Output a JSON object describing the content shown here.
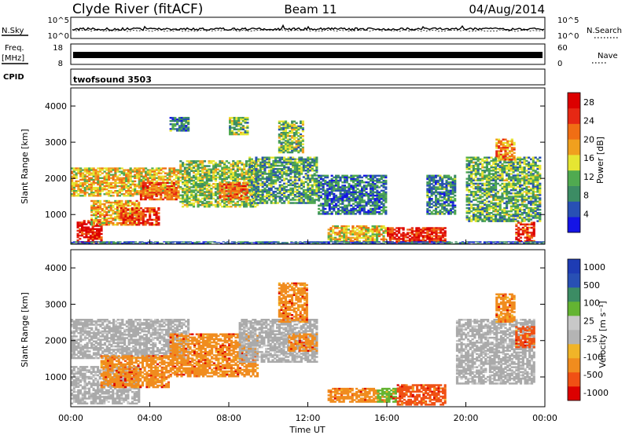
{
  "header": {
    "title": "Clyde River (fitACF)",
    "beam": "Beam 11",
    "date": "04/Aug/2014"
  },
  "status_panels": {
    "nsky_label": "N.Sky",
    "nsky_ticks": [
      "10^5",
      "10^0"
    ],
    "nsearch_label": "N.Search",
    "nsearch_ticks": [
      "10^5",
      "10^0"
    ],
    "freq_label": "Freq.",
    "freq_unit": "[MHz]",
    "freq_ticks": [
      "18",
      "8"
    ],
    "nave_label": "Nave",
    "nave_ticks": [
      "60",
      "0"
    ],
    "cpid_label": "CPID",
    "cpid_value": "twofsound  3503"
  },
  "colors": {
    "power": [
      "#1414e6",
      "#2850b4",
      "#3c8c64",
      "#50aa50",
      "#e6e632",
      "#f0a01e",
      "#f06e14",
      "#e62814",
      "#dc0000"
    ],
    "velocity": [
      "#dc0000",
      "#f05014",
      "#f08c1e",
      "#f0b428",
      "#b4b4b4",
      "#c8c8c8",
      "#64b432",
      "#3c8c64",
      "#2850b4",
      "#1e3cb4"
    ],
    "ground_scatter": "#aaaaaa"
  },
  "chart_data": [
    {
      "type": "heatmap",
      "panel": "power",
      "xlabel": "",
      "ylabel": "Slant Range [km]",
      "xlim": [
        "00:00",
        "24:00"
      ],
      "ylim": [
        180,
        4500
      ],
      "yticks": [
        "1000",
        "2000",
        "3000",
        "4000"
      ],
      "colorbar": {
        "label": "Power [dB]",
        "ticks": [
          "4",
          "8",
          "12",
          "16",
          "20",
          "24",
          "28"
        ],
        "range": [
          0,
          30
        ]
      },
      "regions": [
        {
          "t": [
            0.3,
            1.6
          ],
          "r": [
            220,
            850
          ],
          "level": 27
        },
        {
          "t": [
            1.0,
            3.5
          ],
          "r": [
            700,
            1400
          ],
          "level": 18
        },
        {
          "t": [
            2.5,
            4.5
          ],
          "r": [
            700,
            1200
          ],
          "level": 24
        },
        {
          "t": [
            0.0,
            5.5
          ],
          "r": [
            1500,
            2300
          ],
          "level": 17
        },
        {
          "t": [
            3.5,
            5.5
          ],
          "r": [
            1400,
            1900
          ],
          "level": 22
        },
        {
          "t": [
            5.5,
            9.5
          ],
          "r": [
            1200,
            2500
          ],
          "level": 13
        },
        {
          "t": [
            7.5,
            9.0
          ],
          "r": [
            1400,
            1900
          ],
          "level": 22
        },
        {
          "t": [
            9.0,
            12.5
          ],
          "r": [
            1300,
            2600
          ],
          "level": 10
        },
        {
          "t": [
            10.5,
            11.8
          ],
          "r": [
            2700,
            3600
          ],
          "level": 12
        },
        {
          "t": [
            5.0,
            6.0
          ],
          "r": [
            3300,
            3700
          ],
          "level": 8
        },
        {
          "t": [
            8.0,
            9.0
          ],
          "r": [
            3200,
            3700
          ],
          "level": 12
        },
        {
          "t": [
            12.5,
            16.0
          ],
          "r": [
            1000,
            2100
          ],
          "level": 7
        },
        {
          "t": [
            13.0,
            16.0
          ],
          "r": [
            250,
            700
          ],
          "level": 17
        },
        {
          "t": [
            16.0,
            19.0
          ],
          "r": [
            220,
            650
          ],
          "level": 26
        },
        {
          "t": [
            18.0,
            19.5
          ],
          "r": [
            1000,
            2100
          ],
          "level": 8
        },
        {
          "t": [
            20.0,
            23.8
          ],
          "r": [
            800,
            2600
          ],
          "level": 11
        },
        {
          "t": [
            21.5,
            22.5
          ],
          "r": [
            2500,
            3100
          ],
          "level": 20
        },
        {
          "t": [
            22.5,
            23.5
          ],
          "r": [
            250,
            800
          ],
          "level": 25
        },
        {
          "t": [
            0.0,
            24.0
          ],
          "r": [
            180,
            260
          ],
          "level": 6
        }
      ]
    },
    {
      "type": "heatmap",
      "panel": "velocity",
      "xlabel": "Time UT",
      "ylabel": "Slant Range [km]",
      "xlim": [
        "00:00",
        "24:00"
      ],
      "ylim": [
        180,
        4500
      ],
      "xticks": [
        "00:00",
        "04:00",
        "08:00",
        "12:00",
        "16:00",
        "20:00",
        "00:00"
      ],
      "yticks": [
        "1000",
        "2000",
        "3000",
        "4000"
      ],
      "colorbar": {
        "label": "Velocity [m s⁻¹]",
        "ticks": [
          "1000",
          "500",
          "100",
          "25",
          "-25",
          "-100",
          "-500",
          "-1000"
        ]
      },
      "regions": [
        {
          "t": [
            0.0,
            3.5
          ],
          "r": [
            250,
            1300
          ],
          "bin": "ground"
        },
        {
          "t": [
            0.0,
            6.0
          ],
          "r": [
            1500,
            2600
          ],
          "bin": "ground"
        },
        {
          "t": [
            1.5,
            5.0
          ],
          "r": [
            700,
            1600
          ],
          "bin": "-100"
        },
        {
          "t": [
            5.0,
            9.5
          ],
          "r": [
            1000,
            2200
          ],
          "bin": "-100"
        },
        {
          "t": [
            8.5,
            12.5
          ],
          "r": [
            1400,
            2600
          ],
          "bin": "ground"
        },
        {
          "t": [
            10.5,
            12.0
          ],
          "r": [
            2500,
            3600
          ],
          "bin": "-100"
        },
        {
          "t": [
            11.0,
            12.5
          ],
          "r": [
            1700,
            2200
          ],
          "bin": "-100"
        },
        {
          "t": [
            13.0,
            15.5
          ],
          "r": [
            300,
            700
          ],
          "bin": "-100"
        },
        {
          "t": [
            15.5,
            16.5
          ],
          "r": [
            300,
            700
          ],
          "bin": "100"
        },
        {
          "t": [
            16.5,
            19.0
          ],
          "r": [
            220,
            800
          ],
          "bin": "-500"
        },
        {
          "t": [
            19.5,
            23.5
          ],
          "r": [
            800,
            2600
          ],
          "bin": "ground"
        },
        {
          "t": [
            21.5,
            22.5
          ],
          "r": [
            2500,
            3300
          ],
          "bin": "-100"
        },
        {
          "t": [
            22.5,
            23.5
          ],
          "r": [
            1800,
            2400
          ],
          "bin": "-500"
        }
      ]
    }
  ]
}
